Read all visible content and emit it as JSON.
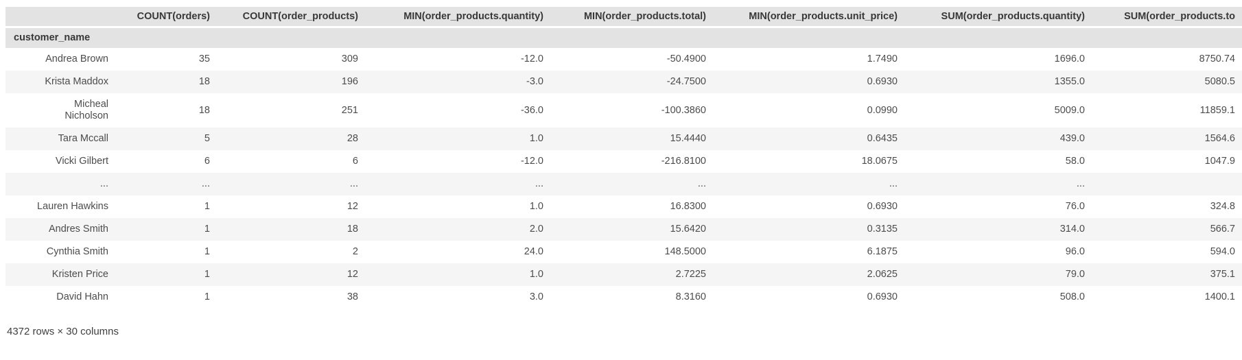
{
  "table": {
    "index_name": "customer_name",
    "columns": [
      "COUNT(orders)",
      "COUNT(order_products)",
      "MIN(order_products.quantity)",
      "MIN(order_products.total)",
      "MIN(order_products.unit_price)",
      "SUM(order_products.quantity)",
      "SUM(order_products.to"
    ],
    "rows": [
      {
        "customer": "Andrea Brown",
        "values": [
          "35",
          "309",
          "-12.0",
          "-50.4900",
          "1.7490",
          "1696.0",
          "8750.74"
        ]
      },
      {
        "customer": "Krista Maddox",
        "values": [
          "18",
          "196",
          "-3.0",
          "-24.7500",
          "0.6930",
          "1355.0",
          "5080.5"
        ]
      },
      {
        "customer": "Micheal\nNicholson",
        "values": [
          "18",
          "251",
          "-36.0",
          "-100.3860",
          "0.0990",
          "5009.0",
          "11859.1"
        ]
      },
      {
        "customer": "Tara Mccall",
        "values": [
          "5",
          "28",
          "1.0",
          "15.4440",
          "0.6435",
          "439.0",
          "1564.6"
        ]
      },
      {
        "customer": "Vicki Gilbert",
        "values": [
          "6",
          "6",
          "-12.0",
          "-216.8100",
          "18.0675",
          "58.0",
          "1047.9"
        ]
      },
      {
        "customer": "...",
        "values": [
          "...",
          "...",
          "...",
          "...",
          "...",
          "...",
          ""
        ]
      },
      {
        "customer": "Lauren Hawkins",
        "values": [
          "1",
          "12",
          "1.0",
          "16.8300",
          "0.6930",
          "76.0",
          "324.8"
        ]
      },
      {
        "customer": "Andres Smith",
        "values": [
          "1",
          "18",
          "2.0",
          "15.6420",
          "0.3135",
          "314.0",
          "566.7"
        ]
      },
      {
        "customer": "Cynthia Smith",
        "values": [
          "1",
          "2",
          "24.0",
          "148.5000",
          "6.1875",
          "96.0",
          "594.0"
        ]
      },
      {
        "customer": "Kristen Price",
        "values": [
          "1",
          "12",
          "1.0",
          "2.7225",
          "2.0625",
          "79.0",
          "375.1"
        ]
      },
      {
        "customer": "David Hahn",
        "values": [
          "1",
          "38",
          "3.0",
          "8.3160",
          "0.6930",
          "508.0",
          "1400.1"
        ]
      }
    ],
    "footer": "4372 rows × 30 columns"
  },
  "colors": {
    "header_bg": "#e3e3e3",
    "stripe_bg": "#f5f5f5",
    "row_bg": "#ffffff",
    "header_text": "#383838",
    "body_text": "#4c4c4c"
  }
}
